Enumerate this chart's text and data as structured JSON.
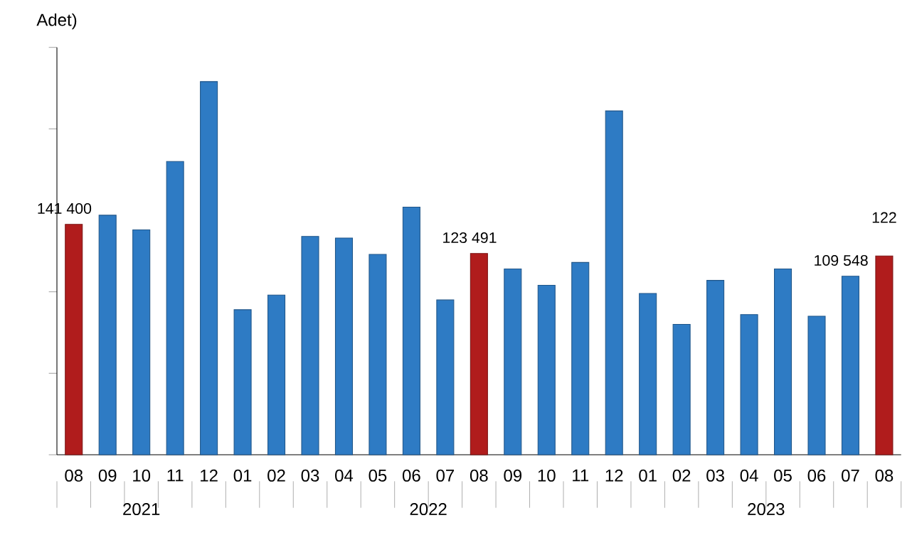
{
  "chart_data": {
    "type": "bar",
    "ylabel": "Adet)",
    "categories": [
      "08",
      "09",
      "10",
      "11",
      "12",
      "01",
      "02",
      "03",
      "04",
      "05",
      "06",
      "07",
      "08",
      "09",
      "10",
      "11",
      "12",
      "01",
      "02",
      "03",
      "04",
      "05",
      "06",
      "07",
      "08"
    ],
    "values": [
      141400,
      147000,
      138000,
      180000,
      229000,
      89000,
      98000,
      134000,
      133000,
      123000,
      152000,
      95000,
      123491,
      114000,
      104000,
      118000,
      211000,
      99000,
      80000,
      107000,
      86000,
      114000,
      85000,
      109548,
      122000
    ],
    "colors": [
      "#b01c1c",
      "#2e7bc4",
      "#2e7bc4",
      "#2e7bc4",
      "#2e7bc4",
      "#2e7bc4",
      "#2e7bc4",
      "#2e7bc4",
      "#2e7bc4",
      "#2e7bc4",
      "#2e7bc4",
      "#2e7bc4",
      "#b01c1c",
      "#2e7bc4",
      "#2e7bc4",
      "#2e7bc4",
      "#2e7bc4",
      "#2e7bc4",
      "#2e7bc4",
      "#2e7bc4",
      "#2e7bc4",
      "#2e7bc4",
      "#2e7bc4",
      "#2e7bc4",
      "#b01c1c"
    ],
    "value_labels": [
      "141 400",
      null,
      null,
      null,
      null,
      null,
      null,
      null,
      null,
      null,
      null,
      null,
      "123 491",
      null,
      null,
      null,
      null,
      null,
      null,
      null,
      null,
      null,
      null,
      "109 548",
      null
    ],
    "ylim": [
      0,
      250000
    ],
    "yticks": [
      {
        "value": 0,
        "label": null
      },
      {
        "value": 50000,
        "label": null
      },
      {
        "value": 100000,
        "label": null
      },
      {
        "value": 150000,
        "label": null
      },
      {
        "value": 200000,
        "label": null
      },
      {
        "value": 250000,
        "label": null
      }
    ],
    "annotations": [
      "2021",
      "2022",
      "2023",
      "122"
    ],
    "grid": false
  }
}
